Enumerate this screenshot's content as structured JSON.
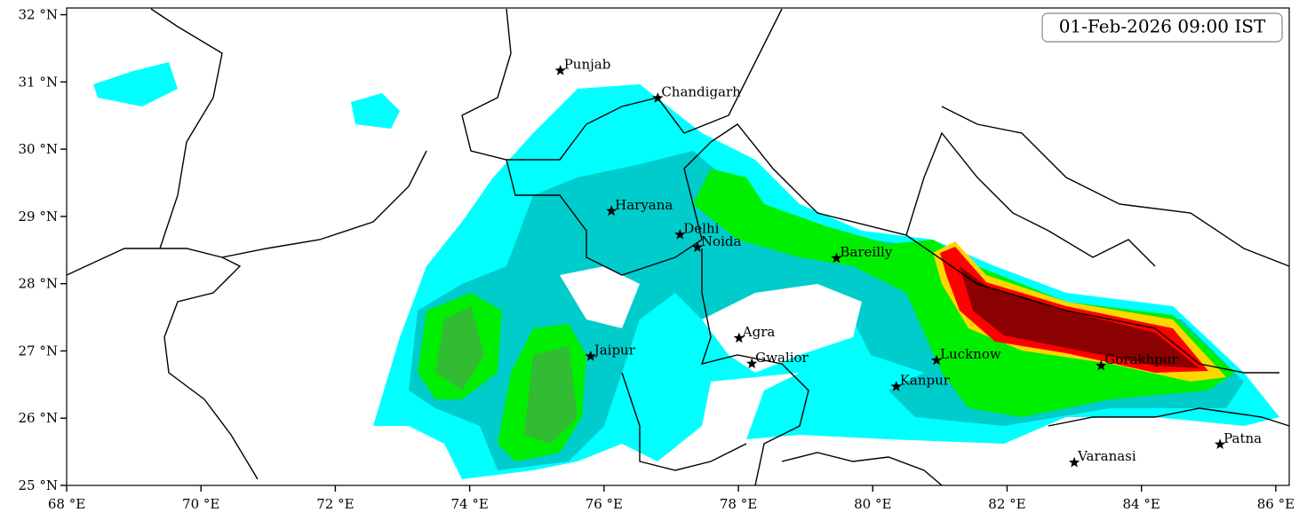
{
  "chart_data": {
    "type": "map",
    "title": "01-Feb-2026 09:00 IST",
    "xlim": [
      68,
      86.2
    ],
    "ylim": [
      25,
      32.1
    ],
    "xticks": [
      {
        "value": 68,
        "label": "68 °E"
      },
      {
        "value": 70,
        "label": "70 °E"
      },
      {
        "value": 72,
        "label": "72 °E"
      },
      {
        "value": 74,
        "label": "74 °E"
      },
      {
        "value": 76,
        "label": "76 °E"
      },
      {
        "value": 78,
        "label": "78 °E"
      },
      {
        "value": 80,
        "label": "80 °E"
      },
      {
        "value": 82,
        "label": "82 °E"
      },
      {
        "value": 84,
        "label": "84 °E"
      },
      {
        "value": 86,
        "label": "86 °E"
      }
    ],
    "yticks": [
      {
        "value": 25,
        "label": "25 °N"
      },
      {
        "value": 26,
        "label": "26 °N"
      },
      {
        "value": 27,
        "label": "27 °N"
      },
      {
        "value": 28,
        "label": "28 °N"
      },
      {
        "value": 29,
        "label": "29 °N"
      },
      {
        "value": 30,
        "label": "30 °N"
      },
      {
        "value": 31,
        "label": "31 °N"
      },
      {
        "value": 32,
        "label": "32 °N"
      }
    ],
    "places": [
      {
        "name": "Punjab",
        "lon": 75.35,
        "lat": 31.17
      },
      {
        "name": "Chandigarh",
        "lon": 76.8,
        "lat": 30.76
      },
      {
        "name": "Haryana",
        "lon": 76.11,
        "lat": 29.08
      },
      {
        "name": "Delhi",
        "lon": 77.13,
        "lat": 28.73
      },
      {
        "name": "Noida",
        "lon": 77.39,
        "lat": 28.54
      },
      {
        "name": "Bareilly",
        "lon": 79.46,
        "lat": 28.38
      },
      {
        "name": "Agra",
        "lon": 78.01,
        "lat": 27.19
      },
      {
        "name": "Jaipur",
        "lon": 75.8,
        "lat": 26.92
      },
      {
        "name": "Gwalior",
        "lon": 78.2,
        "lat": 26.81
      },
      {
        "name": "Lucknow",
        "lon": 80.95,
        "lat": 26.86
      },
      {
        "name": "Kanpur",
        "lon": 80.35,
        "lat": 26.47
      },
      {
        "name": "Gorakhpur",
        "lon": 83.4,
        "lat": 26.78
      },
      {
        "name": "Varanasi",
        "lon": 83.0,
        "lat": 25.34
      },
      {
        "name": "Patna",
        "lon": 85.17,
        "lat": 25.61
      }
    ]
  }
}
